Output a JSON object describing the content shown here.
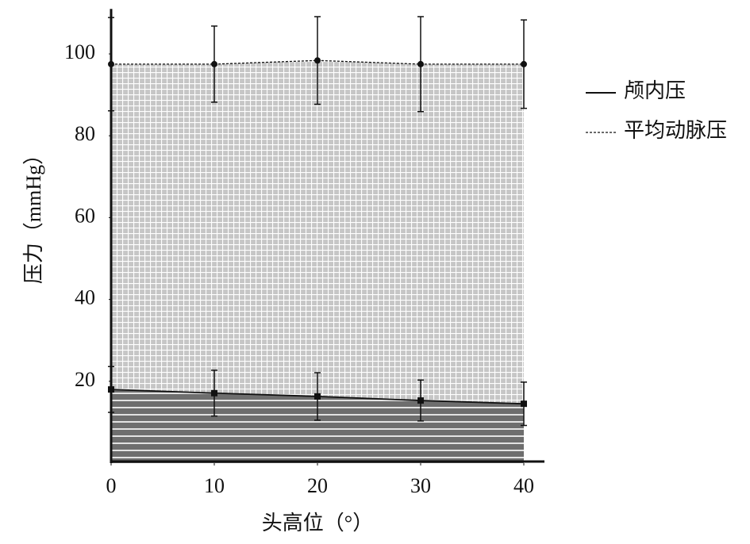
{
  "chart_data": {
    "type": "line",
    "x_label": "头高位（°）",
    "y_label": "压力（mmHg）",
    "x": [
      0,
      10,
      20,
      30,
      40
    ],
    "xlim": [
      0,
      42
    ],
    "xticks": [
      0,
      10,
      20,
      30,
      40
    ],
    "ylim": [
      0,
      111
    ],
    "yticks": [
      20,
      40,
      60,
      80,
      100
    ],
    "legend": "right",
    "series": [
      {
        "name": "颅内压",
        "color": "#111111",
        "fill": "#6e6e6e",
        "dash": false,
        "marker": "square",
        "values": [
          18.0,
          17.1,
          16.3,
          15.3,
          14.5
        ],
        "errors": [
          5.6,
          5.6,
          5.8,
          5.0,
          5.3
        ]
      },
      {
        "name": "平均动脉压",
        "color": "#111111",
        "fill": "#c6c6c6",
        "dash": true,
        "marker": "circle",
        "values": [
          97.5,
          97.5,
          98.4,
          97.5,
          97.5
        ],
        "errors": [
          11.4,
          9.3,
          10.7,
          11.6,
          10.8
        ]
      }
    ]
  }
}
